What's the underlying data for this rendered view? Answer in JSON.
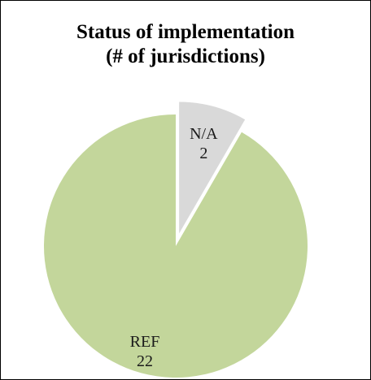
{
  "chart_data": {
    "type": "pie",
    "title": [
      "Status of implementation",
      "(# of jurisdictions)"
    ],
    "categories": [
      "REF",
      "N/A"
    ],
    "values": [
      22,
      2
    ],
    "colors": [
      "#c3d69b",
      "#d9d9d9"
    ],
    "exploded": [
      "N/A"
    ],
    "legend": "none",
    "data_labels": "category-and-value"
  }
}
